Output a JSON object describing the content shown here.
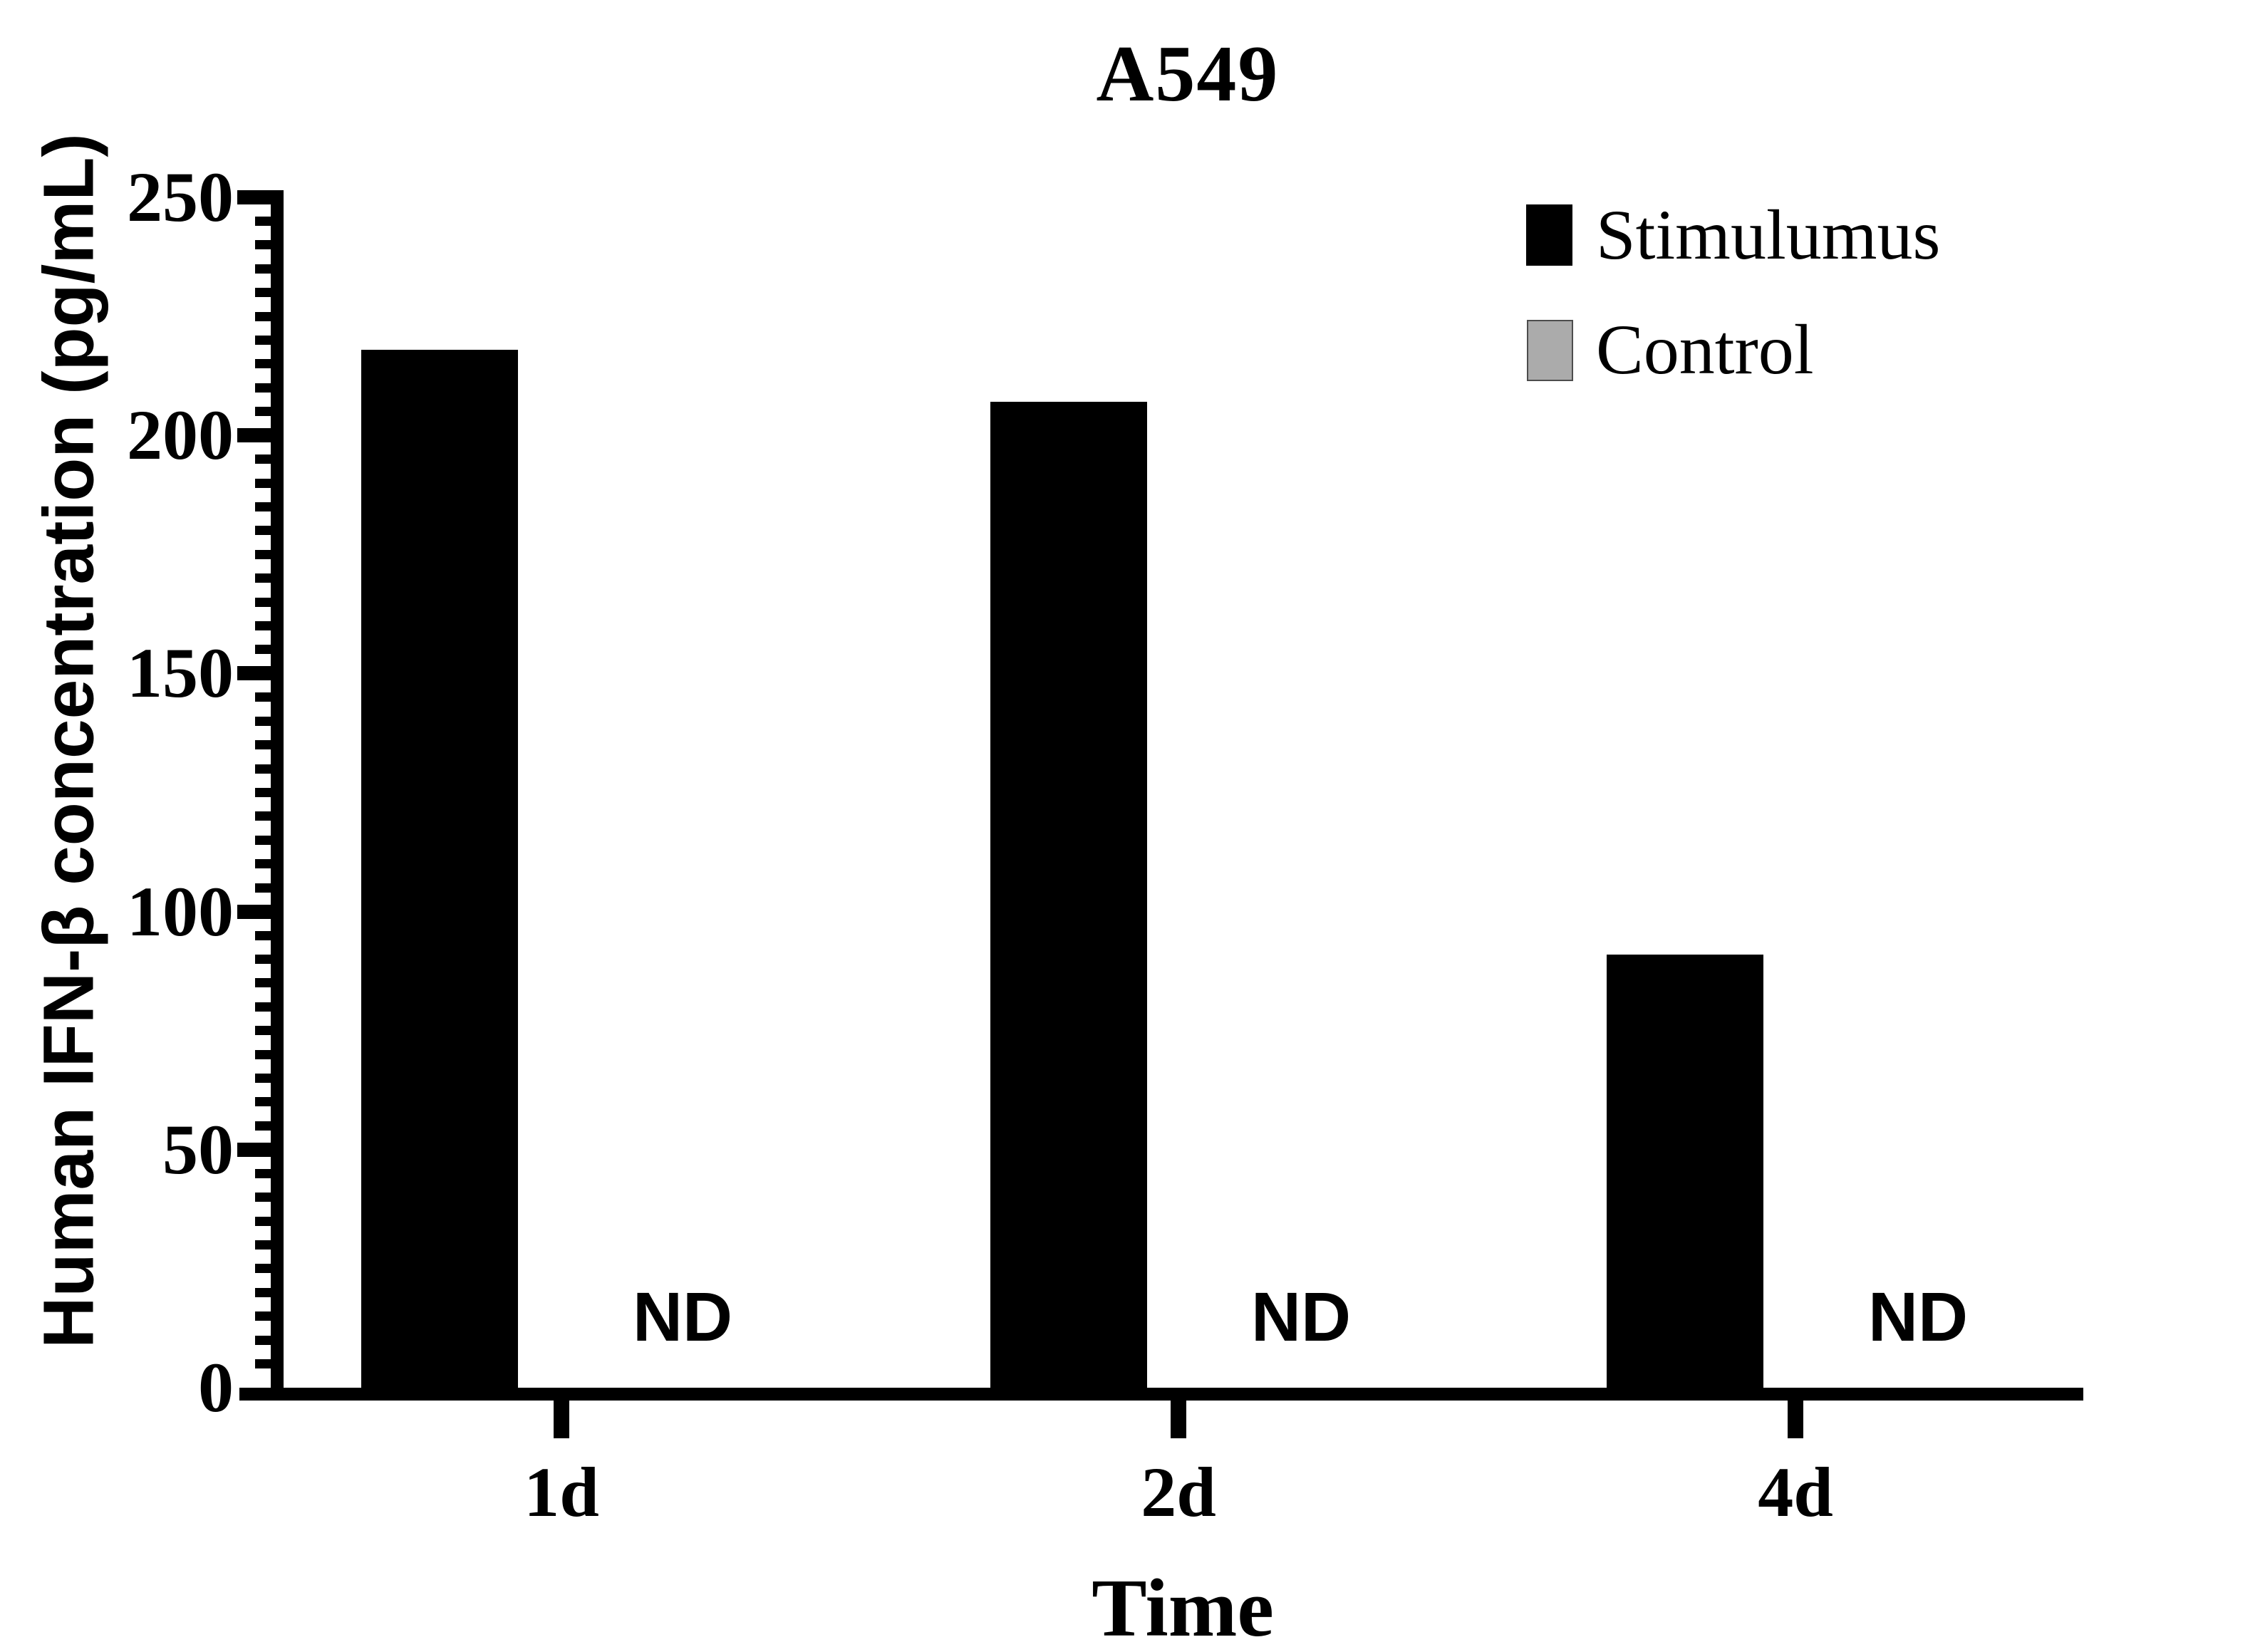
{
  "title": "A549",
  "y_axis": {
    "label": "Human IFN-β concentration (pg/mL)",
    "min": 0,
    "max": 250,
    "major_step": 50,
    "minor_step": 5,
    "tick_labels": [
      "0",
      "50",
      "100",
      "150",
      "200",
      "250"
    ]
  },
  "x_axis": {
    "label": "Time",
    "categories": [
      "1d",
      "2d",
      "4d"
    ]
  },
  "legend": {
    "items": [
      {
        "label": "Stimulumus",
        "color": "#000000"
      },
      {
        "label": "Control",
        "color": "#ababab"
      }
    ]
  },
  "not_detected_text": "ND",
  "colors": {
    "ink": "#000000",
    "control_fill": "#ababab",
    "background": "#ffffff"
  },
  "chart_data": {
    "type": "bar",
    "title": "A549",
    "categories": [
      "1d",
      "2d",
      "4d"
    ],
    "series": [
      {
        "name": "Stimulumus",
        "color": "#000000",
        "values": [
          218,
          207,
          91
        ]
      },
      {
        "name": "Control",
        "color": "#ababab",
        "values": [
          null,
          null,
          null
        ],
        "note": "ND (not detected) at every time point"
      }
    ],
    "xlabel": "Time",
    "ylabel": "Human IFN-β concentration (pg/mL)",
    "ylim": [
      0,
      250
    ],
    "y_major_tick": 50,
    "y_minor_tick": 5,
    "grid": false,
    "legend_position": "top-right"
  }
}
